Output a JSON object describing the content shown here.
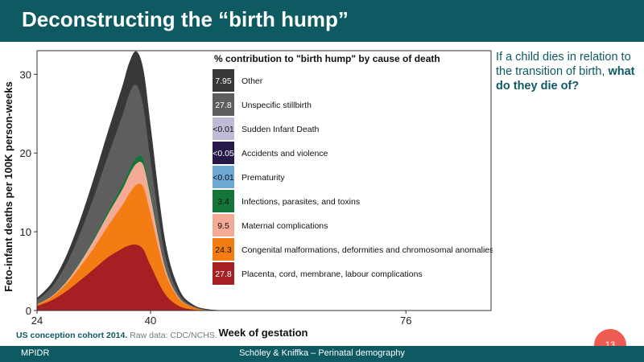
{
  "header": {
    "title": "Deconstructing the “birth hump”"
  },
  "side_note": {
    "line1": "If a child dies in relation to the transition of birth,",
    "line2": "what do they die of?"
  },
  "caption": {
    "cohort": "US conception cohort 2014.",
    "source": " Raw data: CDC/NCHS."
  },
  "footer": {
    "left": "MPIDR",
    "center": "Schöley & Kniffka – Perinatal demography"
  },
  "page_number": "13",
  "colors": {
    "header_bg": "#0d5a63",
    "badge": "#ee5b50",
    "other": "#38383b",
    "unspecific_stillbirth": "#5e5e5f",
    "sudden_infant_death": "#bdbbd6",
    "accidents": "#261849",
    "prematurity": "#6da9d2",
    "infections": "#157437",
    "maternal": "#f5aa96",
    "congenital": "#f37d13",
    "placenta": "#a51f23"
  },
  "chart_data": {
    "type": "area",
    "stacked": true,
    "xlabel": "Week of gestation",
    "ylabel": "Feto-infant deaths per 100K person-weeks",
    "xlim": [
      24,
      88
    ],
    "ylim": [
      0,
      33
    ],
    "xticks": [
      24,
      40,
      76
    ],
    "yticks": [
      0,
      10,
      20,
      30
    ],
    "grid": false,
    "legend_title": "% contribution to \"birth hump\" by cause of death",
    "legend_position": "top-right",
    "x": [
      24,
      26,
      28,
      30,
      32,
      34,
      36,
      37,
      38,
      39,
      40,
      42,
      44,
      46,
      48,
      50
    ],
    "series": [
      {
        "key": "placenta",
        "name": "Placenta, cord, membrane, labour complications",
        "contribution": "27.8",
        "values": [
          0.6,
          1.3,
          2.4,
          3.8,
          5.3,
          6.8,
          7.9,
          8.3,
          8.4,
          7.8,
          5.8,
          2.2,
          0.6,
          0.15,
          0.03,
          0
        ]
      },
      {
        "key": "congenital",
        "name": "Congenital malformations, deformities and chromosomal anomalies",
        "contribution": "24.3",
        "values": [
          0.2,
          0.4,
          0.9,
          1.7,
          2.7,
          4.0,
          5.5,
          6.6,
          7.6,
          7.9,
          6.6,
          2.9,
          0.95,
          0.3,
          0.06,
          0
        ]
      },
      {
        "key": "maternal",
        "name": "Maternal complications",
        "contribution": "9.5",
        "values": [
          0.04,
          0.1,
          0.25,
          0.55,
          1.0,
          1.5,
          2.0,
          2.4,
          2.7,
          2.8,
          2.2,
          0.6,
          0.15,
          0.03,
          0.01,
          0
        ]
      },
      {
        "key": "infections",
        "name": "Infections, parasites, and toxins",
        "contribution": "3.4",
        "values": [
          0.01,
          0.03,
          0.08,
          0.18,
          0.3,
          0.45,
          0.6,
          0.7,
          0.78,
          0.8,
          0.7,
          0.2,
          0.06,
          0.01,
          0,
          0
        ]
      },
      {
        "key": "prematurity",
        "name": "Prematurity",
        "contribution": "<0.01",
        "values": [
          0,
          0,
          0,
          0,
          0,
          0,
          0,
          0,
          0,
          0,
          0,
          0,
          0,
          0,
          0,
          0
        ]
      },
      {
        "key": "accidents",
        "name": "Accidents and violence",
        "contribution": "<0.05",
        "values": [
          0,
          0,
          0,
          0,
          0,
          0,
          0,
          0,
          0,
          0,
          0,
          0,
          0,
          0,
          0,
          0
        ]
      },
      {
        "key": "sudden_infant_death",
        "name": "Sudden Infant Death",
        "contribution": "<0.01",
        "values": [
          0,
          0,
          0,
          0,
          0,
          0,
          0,
          0,
          0,
          0,
          0,
          0,
          0,
          0,
          0,
          0
        ]
      },
      {
        "key": "unspecific_stillbirth",
        "name": "Unspecific stillbirth",
        "contribution": "27.8",
        "values": [
          0.5,
          1.1,
          2.1,
          3.5,
          5.2,
          7.0,
          8.8,
          9.6,
          9.2,
          6.7,
          4.0,
          1.5,
          0.45,
          0.1,
          0.02,
          0
        ]
      },
      {
        "key": "other",
        "name": "Other",
        "contribution": "7.95",
        "values": [
          0.2,
          0.45,
          0.9,
          1.5,
          2.2,
          2.9,
          3.5,
          3.8,
          4.2,
          4.4,
          4.0,
          1.6,
          0.5,
          0.12,
          0.03,
          0
        ]
      }
    ],
    "legend_order": [
      "other",
      "unspecific_stillbirth",
      "sudden_infant_death",
      "accidents",
      "prematurity",
      "infections",
      "maternal",
      "congenital",
      "placenta"
    ]
  }
}
